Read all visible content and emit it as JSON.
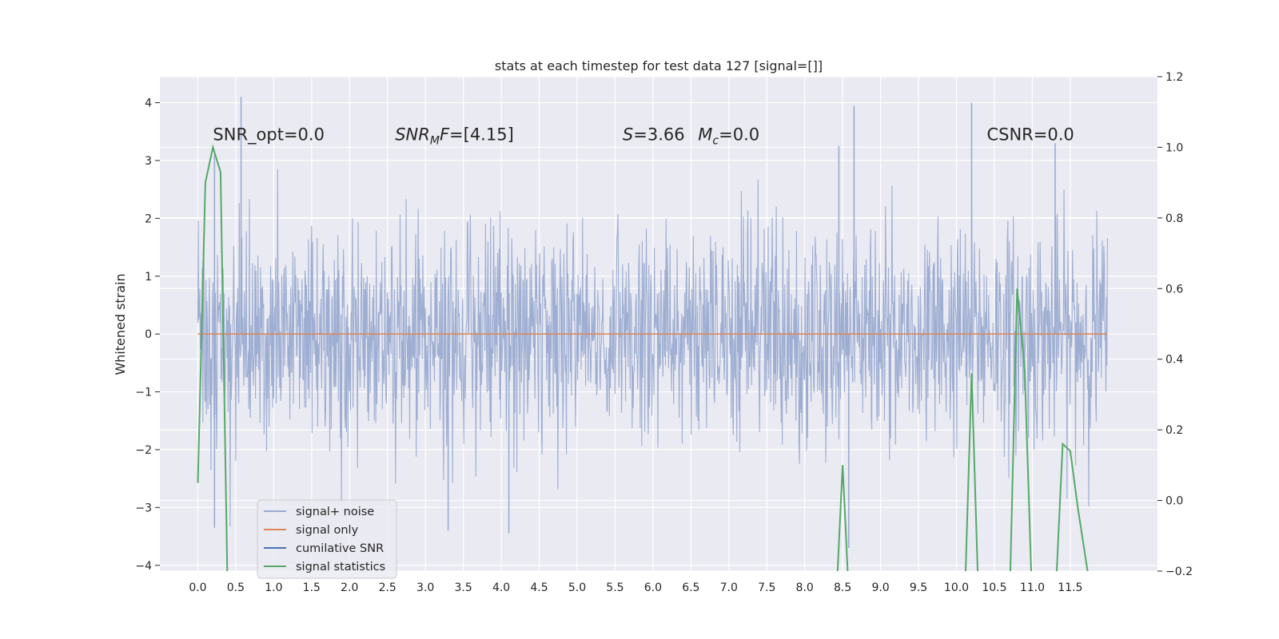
{
  "chart_data": {
    "type": "line",
    "title": "stats at each timestep for test data 127 [signal=[]]",
    "ylabel": "Whitened strain",
    "xlabel": "",
    "xlim": [
      -0.5,
      12.65
    ],
    "ylim": [
      -4.1,
      4.45
    ],
    "y2lim": [
      -0.2,
      1.2
    ],
    "x_ticks": [
      0.0,
      0.5,
      1.0,
      1.5,
      2.0,
      2.5,
      3.0,
      3.5,
      4.0,
      4.5,
      5.0,
      5.5,
      6.0,
      6.5,
      7.0,
      7.5,
      8.0,
      8.5,
      9.0,
      9.5,
      10.0,
      10.5,
      11.0,
      11.5
    ],
    "x_tick_labels": [
      "0.0",
      "0.5",
      "1.0",
      "1.5",
      "2.0",
      "2.5",
      "3.0",
      "3.5",
      "4.0",
      "4.5",
      "5.0",
      "5.5",
      "6.0",
      "6.5",
      "7.0",
      "7.5",
      "8.0",
      "8.5",
      "9.0",
      "9.5",
      "10.0",
      "10.5",
      "11.0",
      "11.5"
    ],
    "y_ticks": [
      -4,
      -3,
      -2,
      -1,
      0,
      1,
      2,
      3,
      4
    ],
    "y_tick_labels": [
      "−4",
      "−3",
      "−2",
      "−1",
      "0",
      "1",
      "2",
      "3",
      "4"
    ],
    "y2_ticks": [
      -0.2,
      0.0,
      0.2,
      0.4,
      0.6,
      0.8,
      1.0,
      1.2
    ],
    "y2_tick_labels": [
      "−0.2",
      "0.0",
      "0.2",
      "0.4",
      "0.6",
      "0.8",
      "1.0",
      "1.2"
    ],
    "grid": true,
    "legend_position": "lower-left",
    "series": [
      {
        "name": "signal+ noise",
        "color": "#9aabd0",
        "axis": "left",
        "x_range": [
          0.0,
          11.99
        ],
        "envelope_min": -3.5,
        "envelope_max": 4.1,
        "peaks": [
          {
            "x": 0.57,
            "y": 4.1
          },
          {
            "x": 10.2,
            "y": 4.0
          },
          {
            "x": 8.65,
            "y": 3.95
          },
          {
            "x": 0.22,
            "y": 3.1
          },
          {
            "x": 8.45,
            "y": 3.25
          },
          {
            "x": 11.3,
            "y": 3.3
          },
          {
            "x": 8.58,
            "y": -3.7
          },
          {
            "x": 4.1,
            "y": -3.45
          },
          {
            "x": 0.22,
            "y": -3.35
          },
          {
            "x": 3.3,
            "y": -3.4
          }
        ]
      },
      {
        "name": "signal only",
        "color": "#dd8452",
        "axis": "left",
        "x": [
          0.0,
          11.99
        ],
        "y": [
          0.0,
          0.0
        ]
      },
      {
        "name": "cumilative SNR",
        "color": "#4c72b0",
        "axis": "right",
        "x": [],
        "y": []
      },
      {
        "name": "signal statistics",
        "color": "#55a868",
        "axis": "right",
        "x": [
          0.0,
          0.1,
          0.2,
          0.3,
          0.4,
          8.4,
          8.5,
          8.6,
          10.1,
          10.2,
          10.3,
          10.7,
          10.8,
          10.9,
          11.0,
          11.3,
          11.4,
          11.5,
          11.6,
          11.8
        ],
        "y": [
          0.05,
          0.9,
          1.0,
          0.93,
          -0.35,
          -0.35,
          0.1,
          -0.35,
          -0.35,
          0.36,
          -0.35,
          -0.3,
          0.6,
          0.37,
          -0.3,
          -0.3,
          0.16,
          0.14,
          -0.02,
          -0.3
        ]
      }
    ],
    "annotations": [
      {
        "key": "snr_opt",
        "text": "SNR_opt=0.0",
        "x": 0.2,
        "y": 3.35
      },
      {
        "key": "snr_mf",
        "prefix": "SNR",
        "sub": "M",
        "mid": "F",
        "suffix": "=[4.15]",
        "x": 2.6,
        "y": 3.35
      },
      {
        "key": "s_mc",
        "prefix": "S",
        "suffix1": "=3.66   ",
        "mc": "M",
        "sub": "c",
        "suffix2": "=0.0",
        "x": 5.6,
        "y": 3.35
      },
      {
        "key": "csnr",
        "text": "CSNR=0.0",
        "x": 10.4,
        "y": 3.35
      }
    ]
  }
}
